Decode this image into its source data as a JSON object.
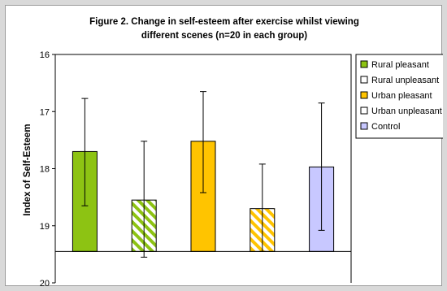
{
  "chart_data": {
    "type": "bar",
    "title_lines": [
      "Figure 2. Change in self-esteem after exercise whilst viewing",
      "different scenes (n=20 in each group)"
    ],
    "xlabel": "",
    "ylabel": "Index of Self-Esteem",
    "y_axis_reversed": true,
    "ylim": [
      16,
      20
    ],
    "yticks": [
      "16",
      "17",
      "18",
      "19",
      "20"
    ],
    "baseline": 19.45,
    "grid": false,
    "legend_position": "right",
    "series": [
      {
        "name": "Rural pleasant",
        "value": 17.7,
        "error_low": 18.65,
        "error_high": 16.77,
        "color": "#8dc313",
        "pattern": "solid"
      },
      {
        "name": "Rural unpleasant",
        "value": 18.55,
        "error_low": 19.55,
        "error_high": 17.52,
        "color": "#8dc313",
        "pattern": "stripes"
      },
      {
        "name": "Urban pleasant",
        "value": 17.52,
        "error_low": 18.42,
        "error_high": 16.65,
        "color": "#ffc400",
        "pattern": "solid"
      },
      {
        "name": "Urban unpleasant",
        "value": 18.7,
        "error_low": 19.45,
        "error_high": 17.92,
        "color": "#ffc400",
        "pattern": "stripes"
      },
      {
        "name": "Control",
        "value": 17.97,
        "error_low": 19.08,
        "error_high": 16.85,
        "color": "#c8c8ff",
        "pattern": "solid"
      }
    ]
  }
}
